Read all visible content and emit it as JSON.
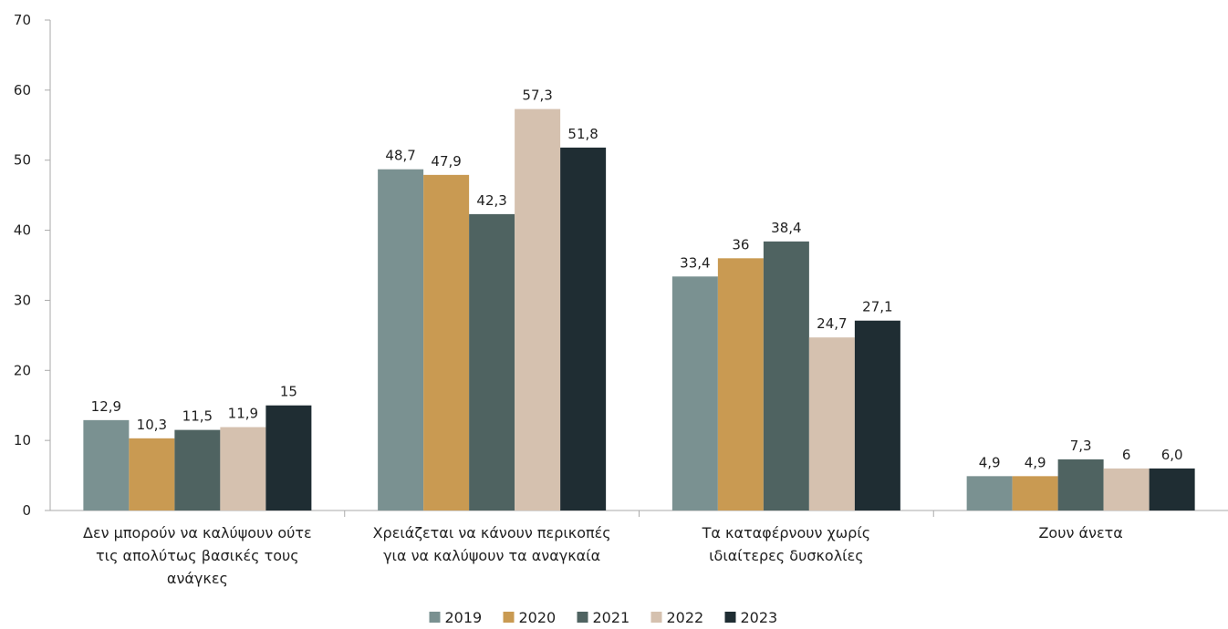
{
  "chart_data": {
    "type": "bar",
    "categories": [
      [
        "Δεν μπορούν να καλύψουν ούτε",
        "τις απολύτως βασικές τους",
        "ανάγκες"
      ],
      [
        "Χρειάζεται να κάνουν περικοπές",
        "για να καλύψουν τα αναγκαία"
      ],
      [
        "Τα καταφέρνουν χωρίς",
        "ιδιαίτερες δυσκολίες"
      ],
      [
        "Ζουν άνετα"
      ]
    ],
    "series": [
      {
        "name": "2019",
        "color": "#7a9191",
        "values": [
          12.9,
          48.7,
          33.4,
          4.9
        ],
        "labels": [
          "12,9",
          "48,7",
          "33,4",
          "4,9"
        ]
      },
      {
        "name": "2020",
        "color": "#c99a52",
        "values": [
          10.3,
          47.9,
          36.0,
          4.9
        ],
        "labels": [
          "10,3",
          "47,9",
          "36",
          "4,9"
        ]
      },
      {
        "name": "2021",
        "color": "#4f6361",
        "values": [
          11.5,
          42.3,
          38.4,
          7.3
        ],
        "labels": [
          "11,5",
          "42,3",
          "38,4",
          "7,3"
        ]
      },
      {
        "name": "2022",
        "color": "#d5c1af",
        "values": [
          11.9,
          57.3,
          24.7,
          6.0
        ],
        "labels": [
          "11,9",
          "57,3",
          "24,7",
          "6"
        ]
      },
      {
        "name": "2023",
        "color": "#1f2d33",
        "values": [
          15.0,
          51.8,
          27.1,
          6.0
        ],
        "labels": [
          "15",
          "51,8",
          "27,1",
          "6,0"
        ]
      }
    ],
    "ylim": [
      0,
      70
    ],
    "yticks": [
      0,
      10,
      20,
      30,
      40,
      50,
      60,
      70
    ],
    "grid": false,
    "legend_position": "bottom-center"
  }
}
